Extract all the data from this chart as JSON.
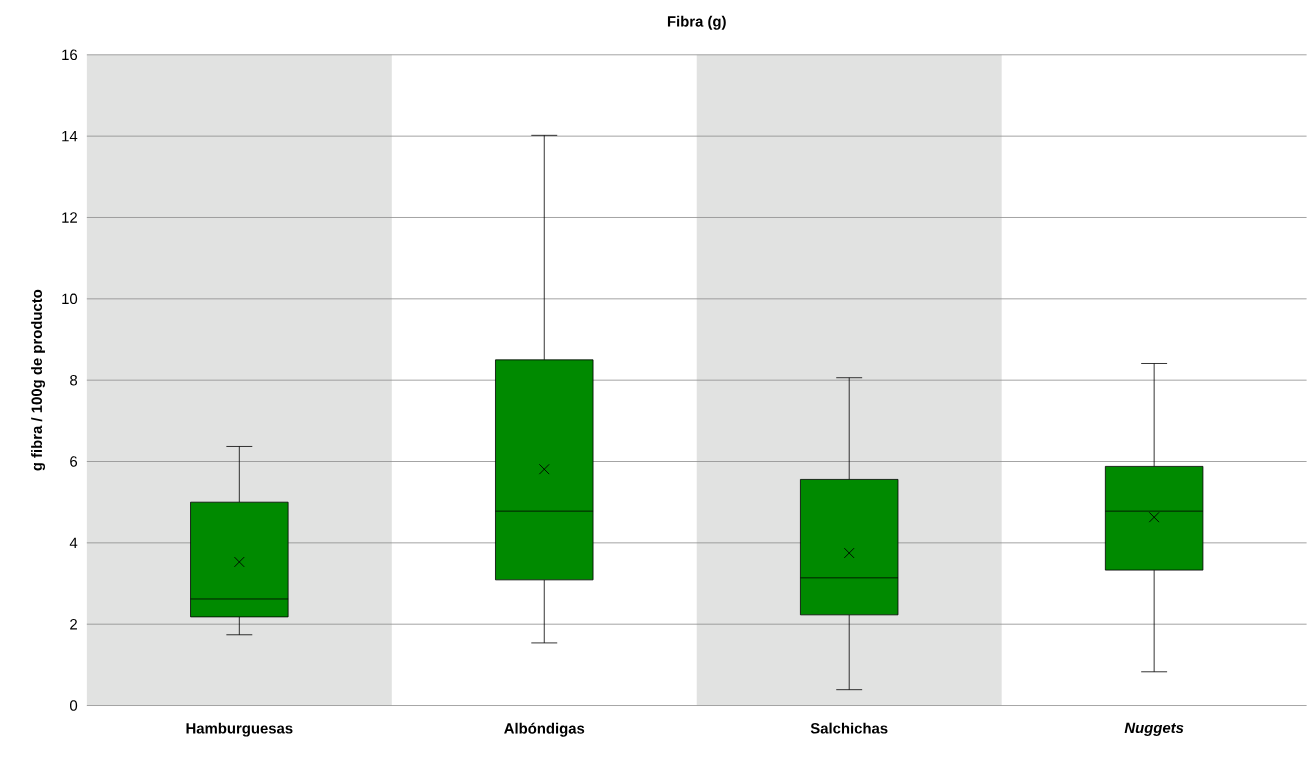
{
  "chart_data": {
    "type": "box",
    "title": "**Fibra (g)**",
    "ylabel": "**g fibra / 100g de producto**",
    "categories": [
      "Hamburguesas",
      "Albóndigas",
      "Salchichas",
      "*Nuggets*"
    ],
    "color": "#008a00",
    "boxes": [
      {
        "low": 1.74,
        "q1": 2.18,
        "median": 2.62,
        "q3": 5.0,
        "high": 6.37,
        "mean": 3.53
      },
      {
        "low": 1.54,
        "q1": 3.09,
        "median": 4.78,
        "q3": 8.5,
        "high": 14.02,
        "mean": 5.81
      },
      {
        "low": 0.39,
        "q1": 2.23,
        "median": 3.14,
        "q3": 5.56,
        "high": 8.06,
        "mean": 3.75
      },
      {
        "low": 0.83,
        "q1": 3.33,
        "median": 4.78,
        "q3": 5.88,
        "high": 8.41,
        "mean": 4.63
      }
    ],
    "marker": "cross",
    "ylim": [
      0,
      16
    ],
    "yticks": [
      0,
      2,
      4,
      6,
      8,
      10,
      12,
      14,
      16
    ],
    "grid": "y"
  }
}
